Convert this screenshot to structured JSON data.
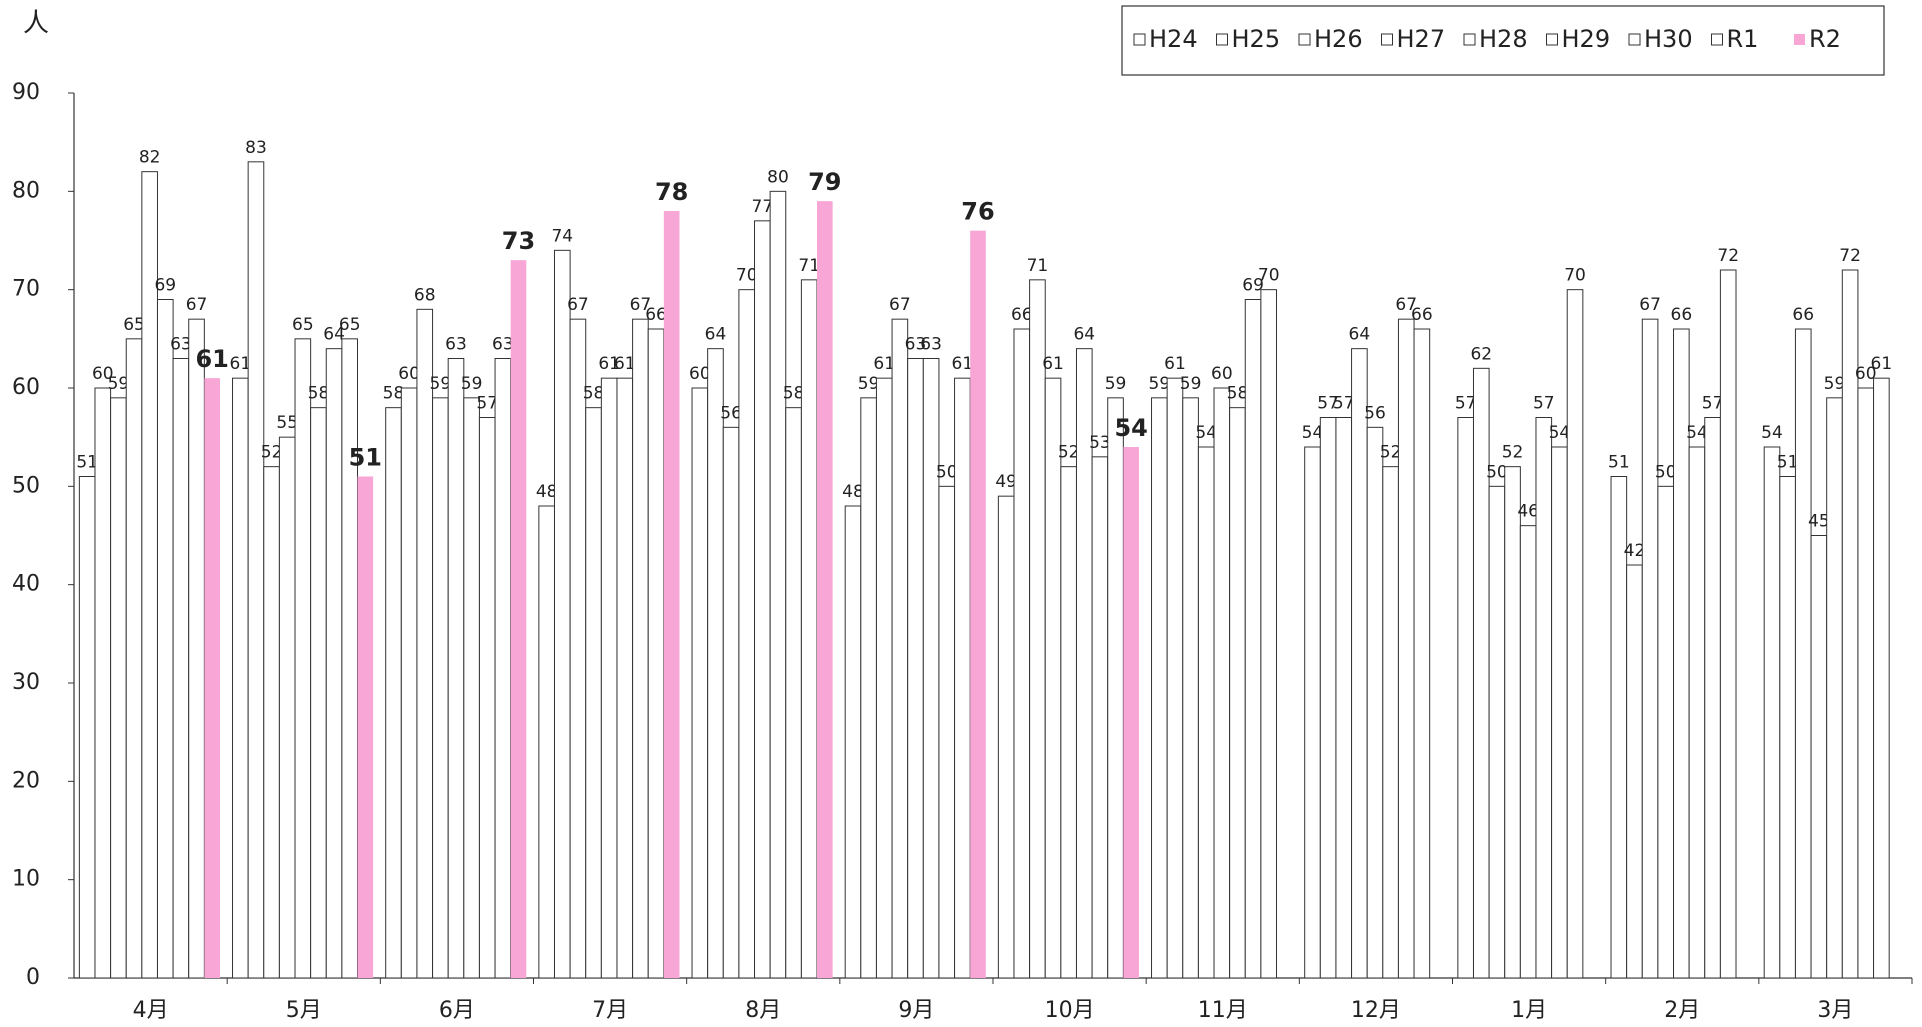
{
  "chart_data": {
    "type": "bar",
    "ylabel": "人",
    "categories": [
      "4月",
      "5月",
      "6月",
      "7月",
      "8月",
      "9月",
      "10月",
      "11月",
      "12月",
      "1月",
      "2月",
      "3月"
    ],
    "series": [
      {
        "name": "H24",
        "color": "#ffffff",
        "values": [
          51,
          61,
          58,
          48,
          60,
          48,
          49,
          59,
          54,
          57,
          51,
          54
        ]
      },
      {
        "name": "H25",
        "color": "#ffffff",
        "values": [
          60,
          83,
          60,
          74,
          64,
          59,
          66,
          61,
          57,
          62,
          42,
          51
        ]
      },
      {
        "name": "H26",
        "color": "#ffffff",
        "values": [
          59,
          52,
          68,
          67,
          56,
          61,
          71,
          59,
          57,
          50,
          67,
          66
        ]
      },
      {
        "name": "H27",
        "color": "#ffffff",
        "values": [
          65,
          55,
          59,
          58,
          70,
          67,
          61,
          54,
          64,
          52,
          50,
          45
        ]
      },
      {
        "name": "H28",
        "color": "#ffffff",
        "values": [
          82,
          65,
          63,
          61,
          77,
          63,
          52,
          60,
          56,
          46,
          66,
          59
        ]
      },
      {
        "name": "H29",
        "color": "#ffffff",
        "values": [
          69,
          58,
          59,
          61,
          80,
          63,
          64,
          58,
          52,
          57,
          54,
          72
        ]
      },
      {
        "name": "H30",
        "color": "#ffffff",
        "values": [
          63,
          64,
          57,
          67,
          58,
          50,
          53,
          69,
          67,
          54,
          57,
          60
        ]
      },
      {
        "name": "R1",
        "color": "#ffffff",
        "values": [
          67,
          65,
          63,
          66,
          71,
          61,
          59,
          70,
          66,
          70,
          72,
          61
        ]
      },
      {
        "name": "R2",
        "color": "#f7a6d6",
        "values": [
          61,
          51,
          73,
          78,
          79,
          76,
          54,
          null,
          null,
          null,
          null,
          null
        ]
      }
    ],
    "ylim": [
      0,
      90
    ],
    "yticks": [
      0,
      10,
      20,
      30,
      40,
      50,
      60,
      70,
      80,
      90
    ],
    "legend": "top-right",
    "grid": false
  }
}
